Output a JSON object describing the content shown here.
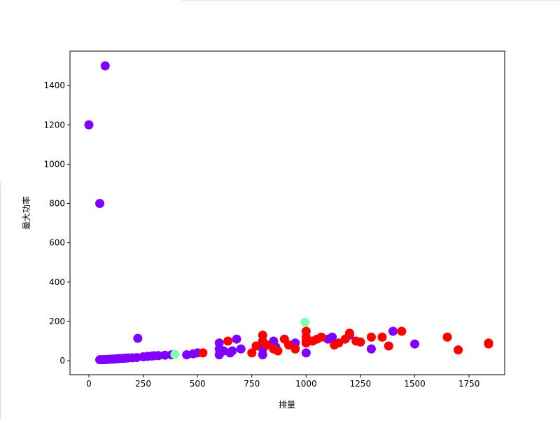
{
  "chart_data": {
    "type": "scatter",
    "x_label": "排量",
    "y_label": "最大功率",
    "xlim": [
      -87,
      1914
    ],
    "ylim": [
      -71,
      1575
    ],
    "xticks": [
      0,
      250,
      500,
      750,
      1000,
      1250,
      1500,
      1750
    ],
    "yticks": [
      0,
      200,
      400,
      600,
      800,
      1000,
      1200,
      1400
    ],
    "series": [
      {
        "color": "#8000ff",
        "x": [
          0,
          75,
          50,
          225,
          50,
          60,
          70,
          80,
          90,
          100,
          110,
          120,
          130,
          140,
          150,
          160,
          170,
          180,
          200,
          220,
          250,
          270,
          290,
          300,
          320,
          350,
          380,
          450,
          480,
          500,
          600,
          600,
          600,
          620,
          650,
          660,
          680,
          700,
          800,
          800,
          850,
          860,
          950,
          1000,
          1100,
          1120,
          1200,
          1300,
          1400,
          1500
        ],
        "y": [
          1200,
          1500,
          800,
          114,
          5,
          5,
          6,
          6,
          7,
          8,
          8,
          9,
          10,
          11,
          12,
          12,
          13,
          14,
          15,
          16,
          20,
          22,
          24,
          25,
          26,
          28,
          30,
          30,
          35,
          40,
          30,
          60,
          90,
          50,
          40,
          50,
          110,
          60,
          30,
          60,
          100,
          70,
          90,
          40,
          110,
          120,
          130,
          60,
          150,
          85
        ]
      },
      {
        "color": "#ff0000",
        "x": [
          525,
          640,
          750,
          770,
          800,
          800,
          820,
          850,
          870,
          900,
          920,
          950,
          1000,
          1000,
          1000,
          1000,
          1030,
          1050,
          1070,
          1130,
          1150,
          1200,
          1180,
          1230,
          1250,
          1300,
          1350,
          1380,
          1440,
          1650,
          1700,
          1840,
          1840
        ],
        "y": [
          40,
          100,
          40,
          75,
          130,
          100,
          80,
          60,
          50,
          110,
          80,
          60,
          150,
          120,
          100,
          90,
          100,
          110,
          120,
          80,
          90,
          140,
          110,
          100,
          95,
          120,
          120,
          75,
          150,
          120,
          55,
          85,
          90
        ]
      },
      {
        "color": "#80ffb4",
        "x": [
          396,
          995
        ],
        "y": [
          32,
          196
        ]
      }
    ]
  }
}
